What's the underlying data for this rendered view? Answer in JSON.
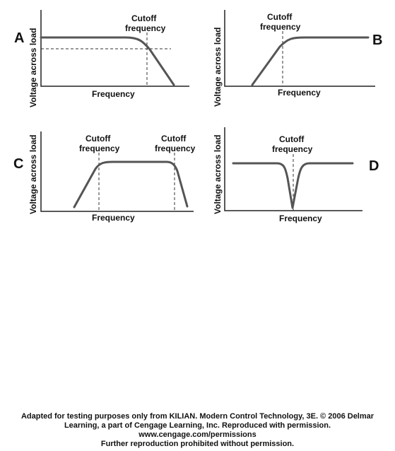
{
  "panels": [
    {
      "id": "A",
      "letter": "A",
      "ylabel": "Voltage across load",
      "xlabel": "Frequency",
      "cutoff_labels": [
        [
          "Cutoff",
          "frequency"
        ]
      ]
    },
    {
      "id": "B",
      "letter": "B",
      "ylabel": "Voltage across load",
      "xlabel": "Frequency",
      "cutoff_labels": [
        [
          "Cutoff",
          "frequency"
        ]
      ]
    },
    {
      "id": "C",
      "letter": "C",
      "ylabel": "Voltage across load",
      "xlabel": "Frequency",
      "cutoff_labels": [
        [
          "Cutoff",
          "frequency"
        ],
        [
          "Cutoff",
          "frequency"
        ]
      ]
    },
    {
      "id": "D",
      "letter": "D",
      "ylabel": "Voltage across load",
      "xlabel": "Frequency",
      "cutoff_labels": [
        [
          "Cutoff",
          "frequency"
        ]
      ]
    }
  ],
  "credit": {
    "line1": "Adapted for testing purposes only from KILIAN. Modern Control Technology, 3E. © 2006 Delmar",
    "line2": "Learning, a part of Cengage Learning, Inc. Reproduced with permission.",
    "line3": "www.cengage.com/permissions",
    "line4": "Further reproduction prohibited without permission."
  }
}
